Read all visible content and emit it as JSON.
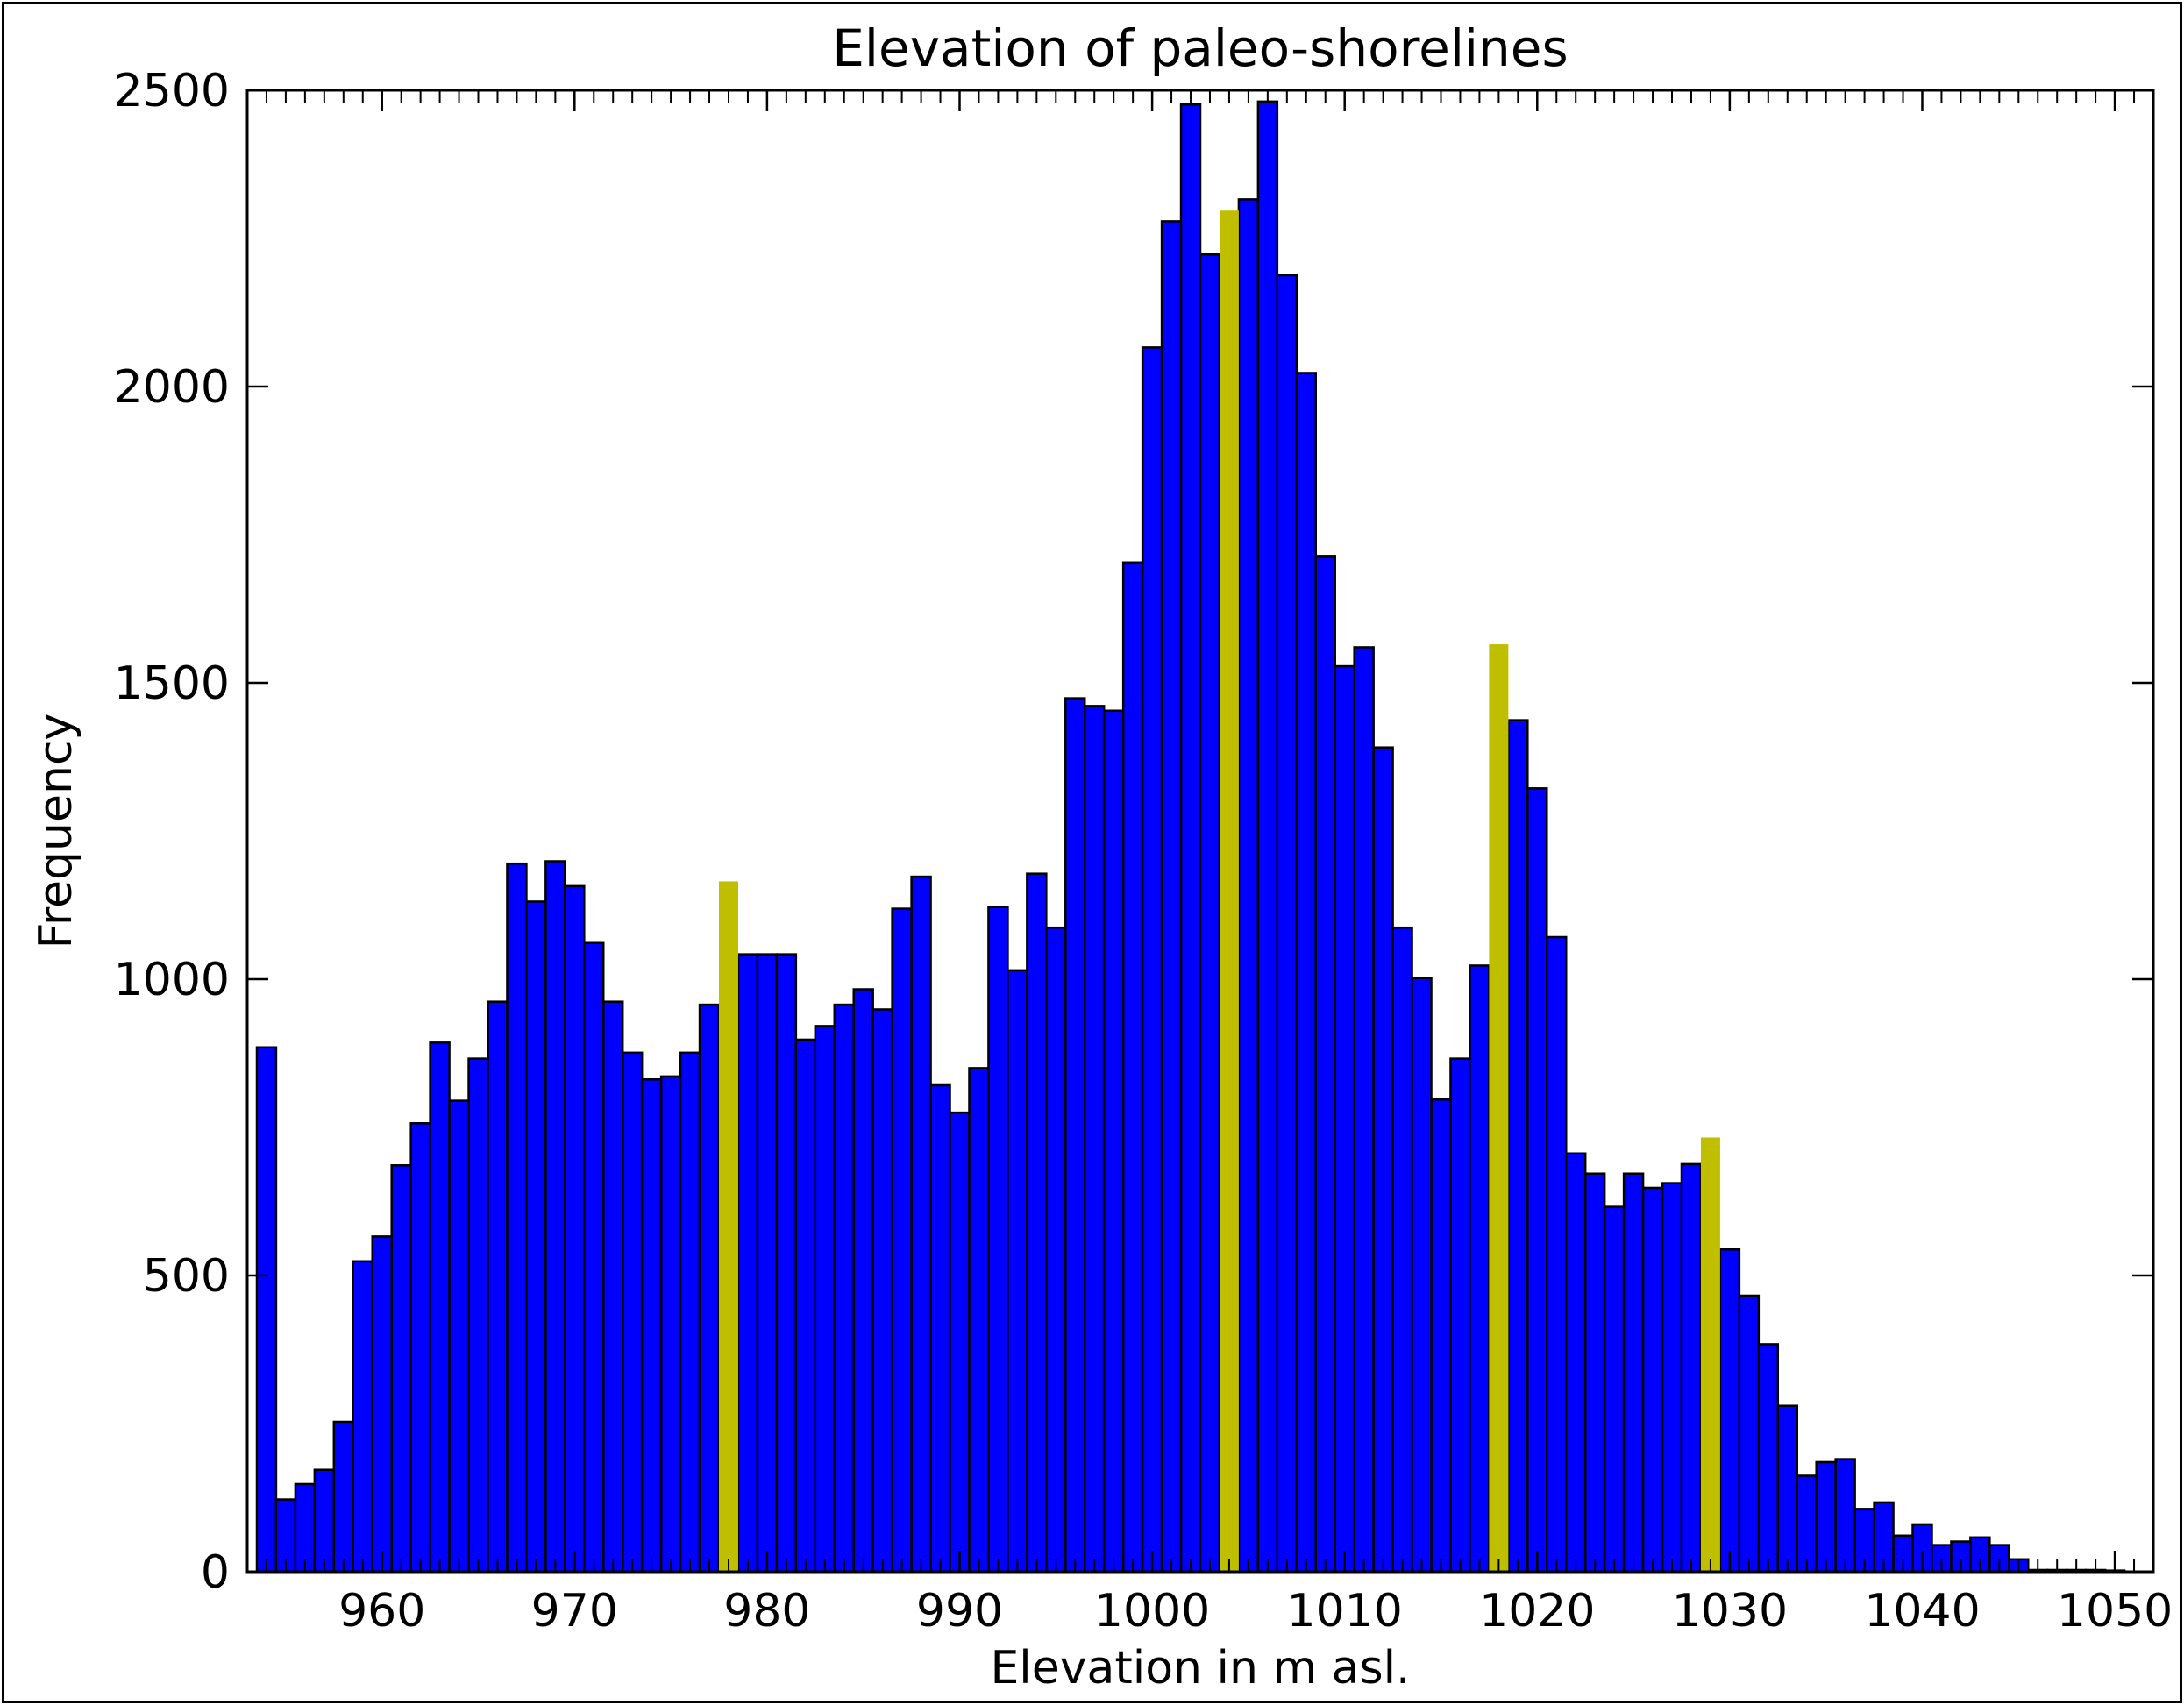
{
  "chart_data": {
    "type": "bar",
    "title": "Elevation of paleo-shorelines",
    "xlabel": "Elevation in m asl.",
    "ylabel": "Frequency",
    "xlim": [
      953,
      1052
    ],
    "ylim": [
      0,
      2500
    ],
    "xticks": [
      960,
      970,
      980,
      990,
      1000,
      1010,
      1020,
      1030,
      1040,
      1050
    ],
    "yticks": [
      0,
      500,
      1000,
      1500,
      2000,
      2500
    ],
    "bin_width": 1,
    "grid": false,
    "series": [
      {
        "color": "#0000ff",
        "bins": [
          {
            "x": 954,
            "y": 885
          },
          {
            "x": 955,
            "y": 122
          },
          {
            "x": 956,
            "y": 148
          },
          {
            "x": 957,
            "y": 172
          },
          {
            "x": 958,
            "y": 253
          },
          {
            "x": 959,
            "y": 524
          },
          {
            "x": 960,
            "y": 566
          },
          {
            "x": 961,
            "y": 686
          },
          {
            "x": 962,
            "y": 757
          },
          {
            "x": 963,
            "y": 893
          },
          {
            "x": 964,
            "y": 795
          },
          {
            "x": 965,
            "y": 866
          },
          {
            "x": 966,
            "y": 962
          },
          {
            "x": 967,
            "y": 1195
          },
          {
            "x": 968,
            "y": 1131
          },
          {
            "x": 969,
            "y": 1199
          },
          {
            "x": 970,
            "y": 1157
          },
          {
            "x": 971,
            "y": 1061
          },
          {
            "x": 972,
            "y": 962
          },
          {
            "x": 973,
            "y": 876
          },
          {
            "x": 974,
            "y": 831
          },
          {
            "x": 975,
            "y": 836
          },
          {
            "x": 976,
            "y": 876
          },
          {
            "x": 977,
            "y": 957
          },
          {
            "x": 979,
            "y": 1042
          },
          {
            "x": 980,
            "y": 1042
          },
          {
            "x": 981,
            "y": 1042
          },
          {
            "x": 982,
            "y": 898
          },
          {
            "x": 983,
            "y": 921
          },
          {
            "x": 984,
            "y": 957
          },
          {
            "x": 985,
            "y": 983
          },
          {
            "x": 986,
            "y": 949
          },
          {
            "x": 987,
            "y": 1119
          },
          {
            "x": 988,
            "y": 1173
          },
          {
            "x": 989,
            "y": 821
          },
          {
            "x": 990,
            "y": 775
          },
          {
            "x": 991,
            "y": 850
          },
          {
            "x": 992,
            "y": 1122
          },
          {
            "x": 993,
            "y": 1015
          },
          {
            "x": 994,
            "y": 1178
          },
          {
            "x": 995,
            "y": 1087
          },
          {
            "x": 996,
            "y": 1474
          },
          {
            "x": 997,
            "y": 1461
          },
          {
            "x": 998,
            "y": 1453
          },
          {
            "x": 999,
            "y": 1703
          },
          {
            "x": 1000,
            "y": 2066
          },
          {
            "x": 1001,
            "y": 2279
          },
          {
            "x": 1002,
            "y": 2476
          },
          {
            "x": 1003,
            "y": 2223
          },
          {
            "x": 1005,
            "y": 2316
          },
          {
            "x": 1006,
            "y": 2481
          },
          {
            "x": 1007,
            "y": 2188
          },
          {
            "x": 1008,
            "y": 2023
          },
          {
            "x": 1009,
            "y": 1714
          },
          {
            "x": 1010,
            "y": 1528
          },
          {
            "x": 1011,
            "y": 1560
          },
          {
            "x": 1012,
            "y": 1391
          },
          {
            "x": 1013,
            "y": 1087
          },
          {
            "x": 1014,
            "y": 1002
          },
          {
            "x": 1015,
            "y": 797
          },
          {
            "x": 1016,
            "y": 866
          },
          {
            "x": 1017,
            "y": 1023
          },
          {
            "x": 1019,
            "y": 1437
          },
          {
            "x": 1020,
            "y": 1322
          },
          {
            "x": 1021,
            "y": 1071
          },
          {
            "x": 1022,
            "y": 706
          },
          {
            "x": 1023,
            "y": 672
          },
          {
            "x": 1024,
            "y": 616
          },
          {
            "x": 1025,
            "y": 672
          },
          {
            "x": 1026,
            "y": 648
          },
          {
            "x": 1027,
            "y": 656
          },
          {
            "x": 1028,
            "y": 688
          },
          {
            "x": 1030,
            "y": 544
          },
          {
            "x": 1031,
            "y": 466
          },
          {
            "x": 1032,
            "y": 384
          },
          {
            "x": 1033,
            "y": 280
          },
          {
            "x": 1034,
            "y": 162
          },
          {
            "x": 1035,
            "y": 185
          },
          {
            "x": 1036,
            "y": 190
          },
          {
            "x": 1037,
            "y": 106
          },
          {
            "x": 1038,
            "y": 117
          },
          {
            "x": 1039,
            "y": 61
          },
          {
            "x": 1040,
            "y": 80
          },
          {
            "x": 1041,
            "y": 45
          },
          {
            "x": 1042,
            "y": 51
          },
          {
            "x": 1043,
            "y": 58
          },
          {
            "x": 1044,
            "y": 45
          },
          {
            "x": 1045,
            "y": 21
          },
          {
            "x": 1046,
            "y": 3
          },
          {
            "x": 1047,
            "y": 3
          },
          {
            "x": 1048,
            "y": 3
          },
          {
            "x": 1049,
            "y": 3
          },
          {
            "x": 1050,
            "y": 2
          }
        ]
      },
      {
        "color": "#bfbf00",
        "bins": [
          {
            "x": 978,
            "y": 1165
          },
          {
            "x": 1004,
            "y": 2297
          },
          {
            "x": 1018,
            "y": 1565
          },
          {
            "x": 1029,
            "y": 733
          }
        ]
      }
    ]
  }
}
